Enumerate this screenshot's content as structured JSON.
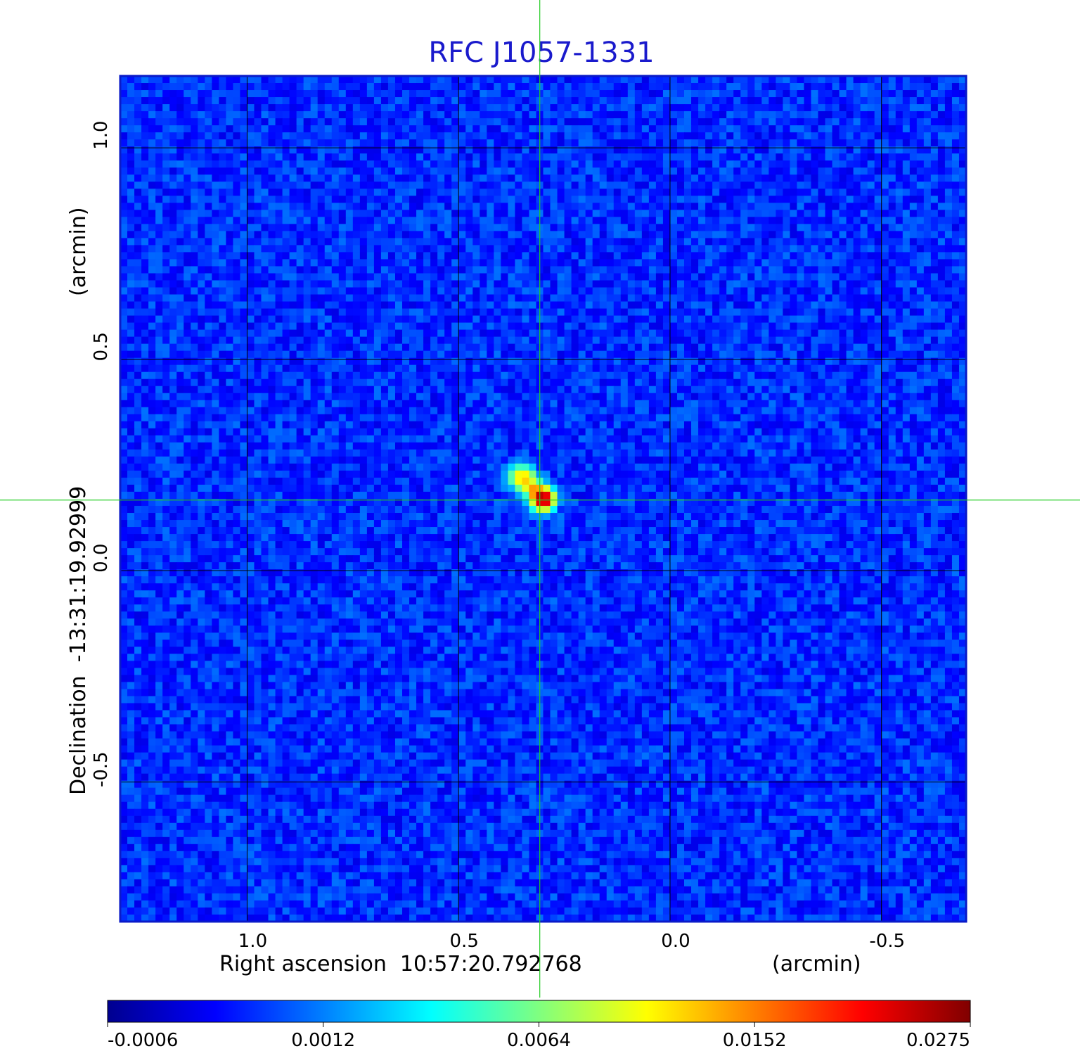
{
  "chart_data": {
    "type": "heatmap",
    "title": "RFC J1057-1331",
    "xlabel": "Right ascension  10:57:20.792768",
    "xunit": "(arcmin)",
    "ylabel": "Declination  -13:31:19.92999",
    "yunit": "(arcmin)",
    "xlim": [
      1.3,
      -0.7
    ],
    "ylim": [
      -0.83,
      1.17
    ],
    "x_ticks": [
      1.0,
      0.5,
      0.0,
      -0.5
    ],
    "x_tick_labels": [
      "1.0",
      "0.5",
      "0.0",
      "-0.5"
    ],
    "y_ticks": [
      1.0,
      0.5,
      0.0,
      -0.5
    ],
    "y_tick_labels": [
      "1.0",
      "0.5",
      "0.0",
      "-0.5"
    ],
    "grid": true,
    "crosshair": {
      "x": 0.308,
      "y": 0.167,
      "color": "#22cc22"
    },
    "colorbar": {
      "tick_labels": [
        "-0.0006",
        "0.0012",
        "0.0064",
        "0.0152",
        "0.0275"
      ],
      "colors": [
        "#00008f",
        "#0000ff",
        "#00ffff",
        "#ffff00",
        "#ff0000",
        "#800000"
      ]
    },
    "image": {
      "pixels": 120,
      "background_level": 0.0006,
      "noise": 0.0005,
      "components": [
        {
          "x": 0.3,
          "y": 0.17,
          "peak": 0.0275,
          "sigma": 0.017
        },
        {
          "x": 0.35,
          "y": 0.22,
          "peak": 0.012,
          "sigma": 0.019
        },
        {
          "x": 0.325,
          "y": 0.195,
          "peak": 0.008,
          "sigma": 0.015
        }
      ]
    }
  }
}
